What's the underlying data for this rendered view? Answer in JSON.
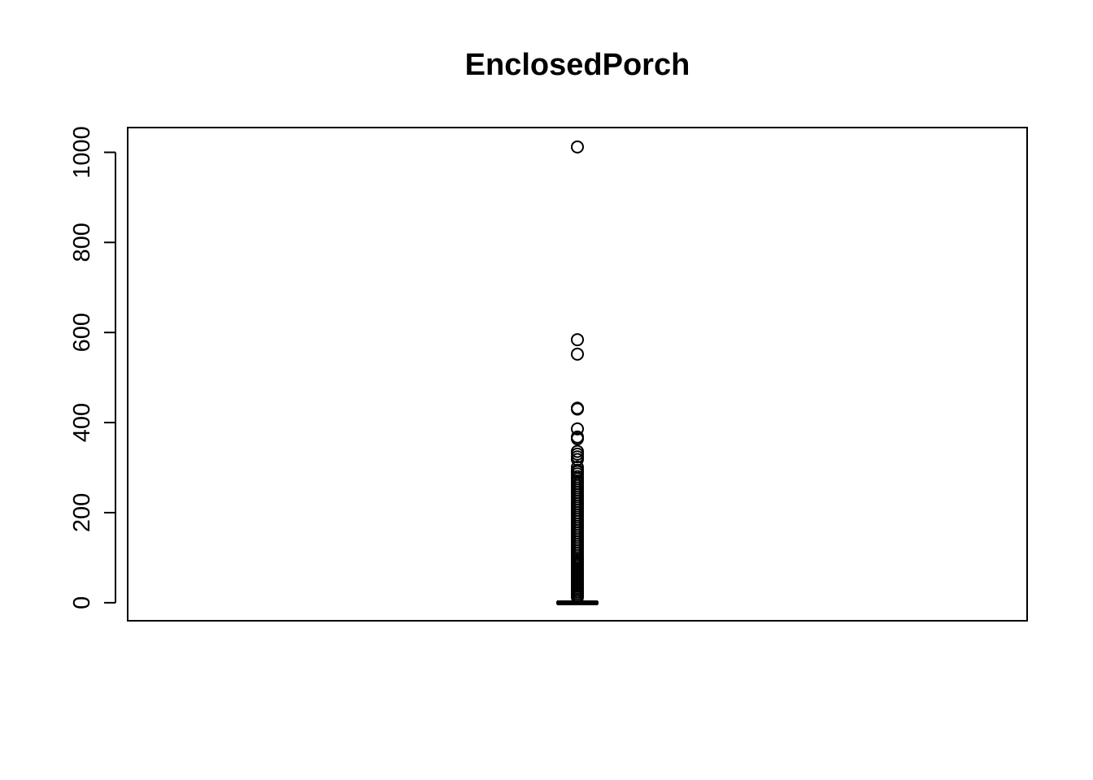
{
  "chart_data": {
    "type": "boxplot",
    "title": "EnclosedPorch",
    "xlabel": "",
    "ylabel": "",
    "ylim": [
      -40,
      1055
    ],
    "y_ticks": [
      0,
      200,
      400,
      600,
      800,
      1000
    ],
    "y_tick_labels": [
      "0",
      "200",
      "400",
      "600",
      "800",
      "1000"
    ],
    "box": {
      "min": 0,
      "q1": 0,
      "median": 0,
      "q3": 0,
      "max": 0
    },
    "outliers": [
      1012,
      584,
      552,
      432,
      430,
      386,
      368,
      364,
      336,
      330,
      324,
      318,
      301,
      294,
      291,
      286,
      280,
      275,
      270,
      265,
      260,
      255,
      250,
      245,
      240,
      235,
      230,
      225,
      220,
      215,
      210,
      205,
      200,
      195,
      190,
      185,
      180,
      175,
      170,
      165,
      160,
      155,
      150,
      145,
      140,
      135,
      130,
      125,
      120,
      115,
      110,
      105,
      100,
      96,
      92,
      88,
      84,
      80,
      76,
      72,
      68,
      64,
      60,
      56,
      52,
      48,
      44,
      40,
      36,
      32,
      28,
      24,
      20,
      16,
      12
    ],
    "grid": false,
    "colors": {
      "stroke": "#000000",
      "background": "#ffffff"
    }
  }
}
